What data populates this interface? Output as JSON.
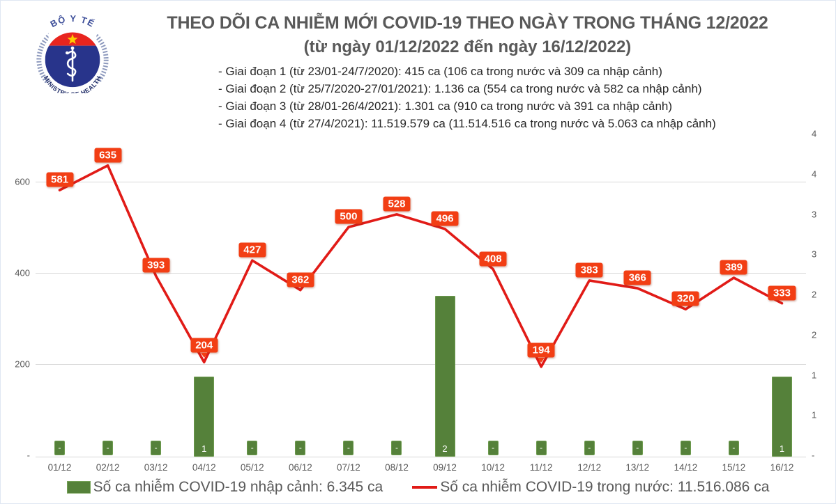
{
  "logo": {
    "top_text": "BỘ Y TẾ",
    "bottom_text": "MINISTRY OF HEALTH",
    "colors": {
      "navy": "#28348B",
      "red": "#E8251F",
      "star": "#FFCC00",
      "arc_text": "#3E4F9A",
      "hatch": "#8D99BD"
    }
  },
  "header": {
    "title": "THEO DÕI CA NHIỄM MỚI COVID-19 THEO NGÀY TRONG THÁNG 12/2022",
    "subtitle": "(từ ngày 01/12/2022 đến ngày 16/12/2022)",
    "phases": [
      "- Giai đoạn 1 (từ 23/01-24/7/2020): 415 ca (106 ca trong nước và 309 ca nhập cảnh)",
      "- Giai đoạn 2 (từ 25/7/2020-27/01/2021): 1.136 ca (554 ca trong nước và 582 ca nhập cảnh)",
      "- Giai đoạn 3 (từ 28/01-26/4/2021): 1.301 ca (910 ca trong nước và 391 ca nhập cảnh)",
      "- Giai đoạn 4 (từ 27/4/2021): 11.519.579 ca (11.514.516 ca trong nước và 5.063 ca nhập cảnh)"
    ]
  },
  "chart_data": {
    "type": "bar+line combo",
    "title": "THEO DÕI CA NHIỄM MỚI COVID-19 THEO NGÀY TRONG THÁNG 12/2022 (từ ngày 01/12/2022 đến ngày 16/12/2022)",
    "categories": [
      "01/12",
      "02/12",
      "03/12",
      "04/12",
      "05/12",
      "06/12",
      "07/12",
      "08/12",
      "09/12",
      "10/12",
      "11/12",
      "12/12",
      "13/12",
      "14/12",
      "15/12",
      "16/12"
    ],
    "series": [
      {
        "name": "Số ca nhiễm COVID-19 nhập cảnh",
        "type": "bar",
        "axis": "right",
        "color": "#55813A",
        "values": [
          0,
          0,
          0,
          1,
          0,
          0,
          0,
          0,
          2,
          0,
          0,
          0,
          0,
          0,
          0,
          1
        ],
        "labels": [
          "-",
          "-",
          "-",
          "1",
          "-",
          "-",
          "-",
          "-",
          "2",
          "-",
          "-",
          "-",
          "-",
          "-",
          "-",
          "1"
        ]
      },
      {
        "name": "Số ca nhiễm COVID-19 trong nước",
        "type": "line",
        "axis": "left",
        "color": "#E11B17",
        "label_box_color": "#F23E14",
        "values": [
          581,
          635,
          393,
          204,
          427,
          362,
          500,
          528,
          496,
          408,
          194,
          383,
          366,
          320,
          389,
          333
        ]
      }
    ],
    "left_axis": {
      "min": 0,
      "max": 700,
      "tick_values": [
        600,
        400,
        200,
        0
      ],
      "tick_labels": [
        "600",
        "400",
        "200",
        "-"
      ]
    },
    "right_axis": {
      "min": 0,
      "max": 4,
      "step": 0.5,
      "tick_labels_bottom_up": [
        "-",
        "1",
        "1",
        "2",
        "2",
        "3",
        "3",
        "4",
        "4"
      ]
    },
    "grid": "horizontal only",
    "legend_position": "bottom"
  },
  "legend": [
    {
      "swatch": "bar",
      "color": "#55813A",
      "label": "Số ca nhiễm COVID-19 nhập cảnh: 6.345 ca"
    },
    {
      "swatch": "line",
      "color": "#E11B17",
      "label": "Số ca nhiễm COVID-19 trong nước: 11.516.086 ca"
    }
  ]
}
